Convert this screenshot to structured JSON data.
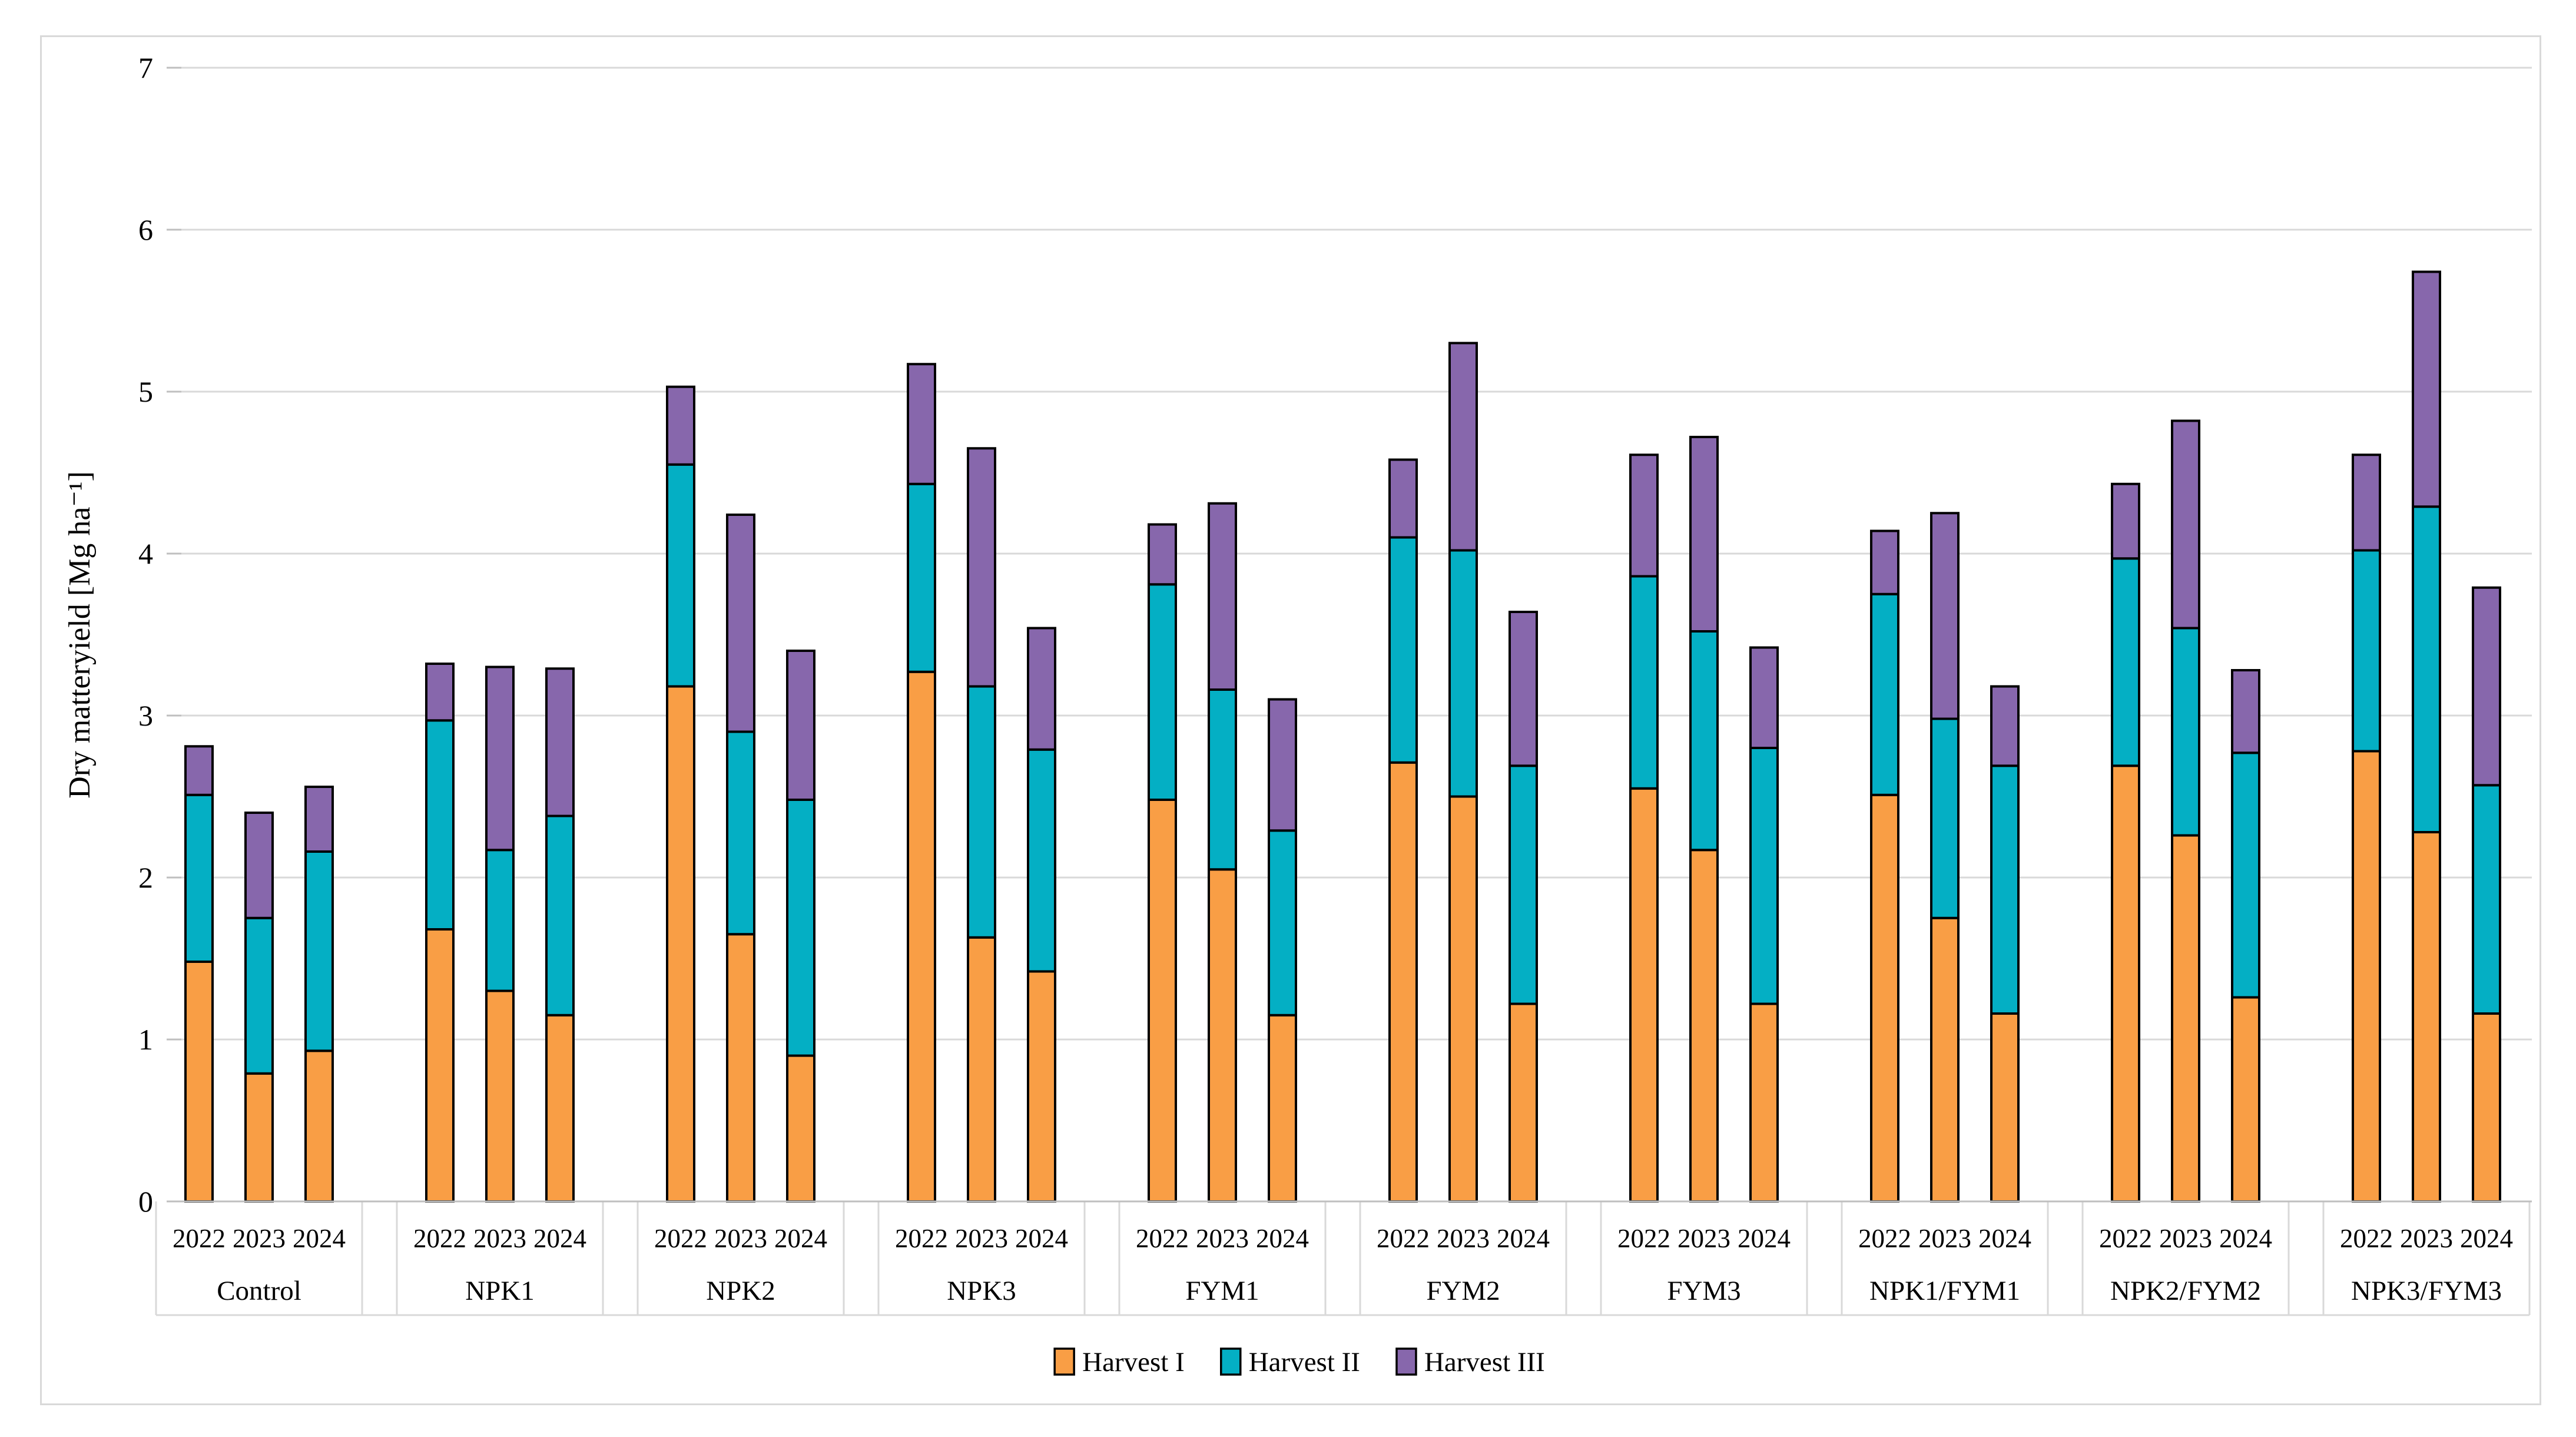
{
  "figure": {
    "background": "#FFFFFF",
    "border_color": "#D9D9D9"
  },
  "chart_data": {
    "type": "bar",
    "stacked": true,
    "title": "",
    "xlabel": "",
    "ylabel": "Dry matteryield [Mg ha⁻¹]",
    "ylim": [
      0,
      7
    ],
    "yticks": [
      "0",
      "1",
      "2",
      "3",
      "4",
      "5",
      "6",
      "7"
    ],
    "grid": true,
    "gridline_color": "#D9D9D9",
    "axis_line_color": "#BFBFBF",
    "tick_color": "#BFBFBF",
    "band_line_color": "#D9D9D9",
    "bar_outline_color": "#000000",
    "text_color": "#000000",
    "legend_position": "bottom-center",
    "years": [
      "2022",
      "2023",
      "2024"
    ],
    "series": [
      {
        "name": "Harvest I",
        "color": "#F99E45"
      },
      {
        "name": "Harvest II",
        "color": "#04AFC4"
      },
      {
        "name": "Harvest III",
        "color": "#8767AC"
      }
    ],
    "groups": [
      {
        "label": "Control",
        "bars": [
          [
            1.48,
            1.03,
            0.3
          ],
          [
            0.79,
            0.96,
            0.65
          ],
          [
            0.93,
            1.23,
            0.4
          ]
        ]
      },
      {
        "label": "NPK1",
        "bars": [
          [
            1.68,
            1.29,
            0.35
          ],
          [
            1.3,
            0.87,
            1.13
          ],
          [
            1.15,
            1.23,
            0.91
          ]
        ]
      },
      {
        "label": "NPK2",
        "bars": [
          [
            3.18,
            1.37,
            0.48
          ],
          [
            1.65,
            1.25,
            1.34
          ],
          [
            0.9,
            1.58,
            0.92
          ]
        ]
      },
      {
        "label": "NPK3",
        "bars": [
          [
            3.27,
            1.16,
            0.74
          ],
          [
            1.63,
            1.55,
            1.47
          ],
          [
            1.42,
            1.37,
            0.75
          ]
        ]
      },
      {
        "label": "FYM1",
        "bars": [
          [
            2.48,
            1.33,
            0.37
          ],
          [
            2.05,
            1.11,
            1.15
          ],
          [
            1.15,
            1.14,
            0.81
          ]
        ]
      },
      {
        "label": "FYM2",
        "bars": [
          [
            2.71,
            1.39,
            0.48
          ],
          [
            2.5,
            1.52,
            1.28
          ],
          [
            1.22,
            1.47,
            0.95
          ]
        ]
      },
      {
        "label": "FYM3",
        "bars": [
          [
            2.55,
            1.31,
            0.75
          ],
          [
            2.17,
            1.35,
            1.2
          ],
          [
            1.22,
            1.58,
            0.62
          ]
        ]
      },
      {
        "label": "NPK1/FYM1",
        "bars": [
          [
            2.51,
            1.24,
            0.39
          ],
          [
            1.75,
            1.23,
            1.27
          ],
          [
            1.16,
            1.53,
            0.49
          ]
        ]
      },
      {
        "label": "NPK2/FYM2",
        "bars": [
          [
            2.69,
            1.28,
            0.46
          ],
          [
            2.26,
            1.28,
            1.28
          ],
          [
            1.26,
            1.51,
            0.51
          ]
        ]
      },
      {
        "label": "NPK3/FYM3",
        "bars": [
          [
            2.78,
            1.24,
            0.59
          ],
          [
            2.28,
            2.01,
            1.45
          ],
          [
            1.16,
            1.41,
            1.22
          ]
        ]
      }
    ]
  }
}
